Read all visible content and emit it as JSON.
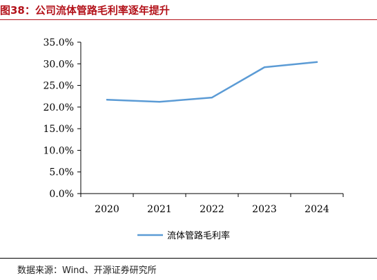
{
  "header": {
    "title": "图38：公司流体管路毛利率逐年提升"
  },
  "footer": {
    "source": "数据来源：Wind、开源证券研究所"
  },
  "chart_data": {
    "type": "line",
    "title": "图38：公司流体管路毛利率逐年提升",
    "categories": [
      "2020",
      "2021",
      "2022",
      "2023",
      "2024"
    ],
    "y_ticks": [
      "0.0%",
      "5.0%",
      "10.0%",
      "15.0%",
      "20.0%",
      "25.0%",
      "30.0%",
      "35.0%"
    ],
    "ylim": [
      0,
      35
    ],
    "yunit": "%",
    "grid": false,
    "legend": "bottom",
    "series": [
      {
        "name": "流体管路毛利率",
        "color": "#5b9bd5",
        "values": [
          21.7,
          21.2,
          22.2,
          29.2,
          30.4
        ]
      }
    ]
  }
}
